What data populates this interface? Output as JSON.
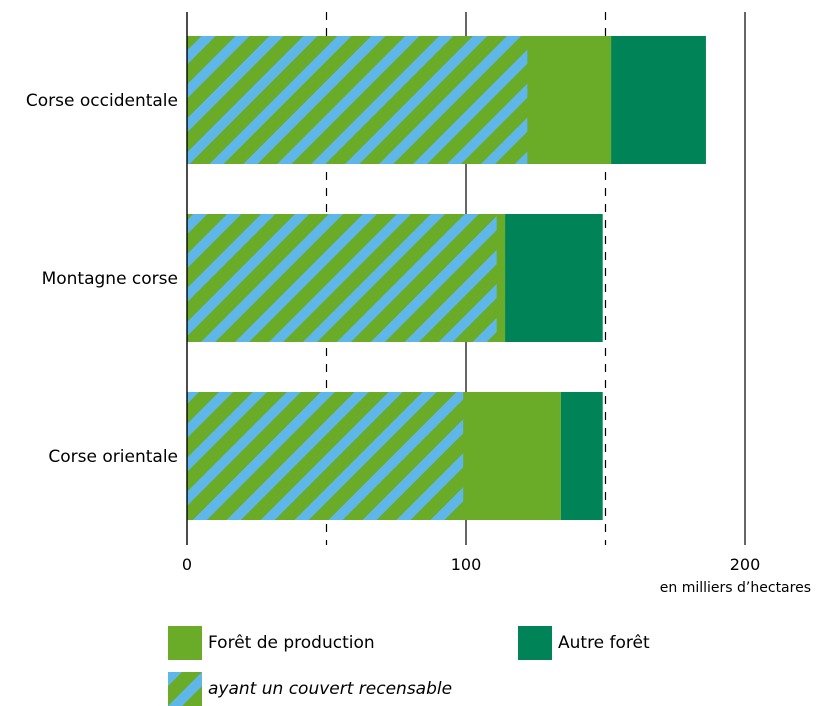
{
  "chart_data": {
    "type": "bar",
    "orientation": "horizontal",
    "stacked": true,
    "categories": [
      "Corse occidentale",
      "Montagne corse",
      "Corse orientale"
    ],
    "series": [
      {
        "name": "Forêt de production",
        "values": [
          152,
          114,
          134
        ],
        "color": "#6aab27",
        "subset": {
          "name": "ayant un couvert recensable",
          "values": [
            122,
            111,
            99
          ],
          "pattern": "diagonal stripes",
          "stripe_color": "#5fb6e8"
        }
      },
      {
        "name": "Autre forêt",
        "values": [
          34,
          35,
          15
        ],
        "color": "#008357"
      }
    ],
    "xlim": [
      0,
      200
    ],
    "xticks": [
      "0",
      "100",
      "200"
    ],
    "gridlines": [
      50,
      150
    ],
    "unit_label": "en milliers d’hectares",
    "legend_position": "bottom"
  }
}
